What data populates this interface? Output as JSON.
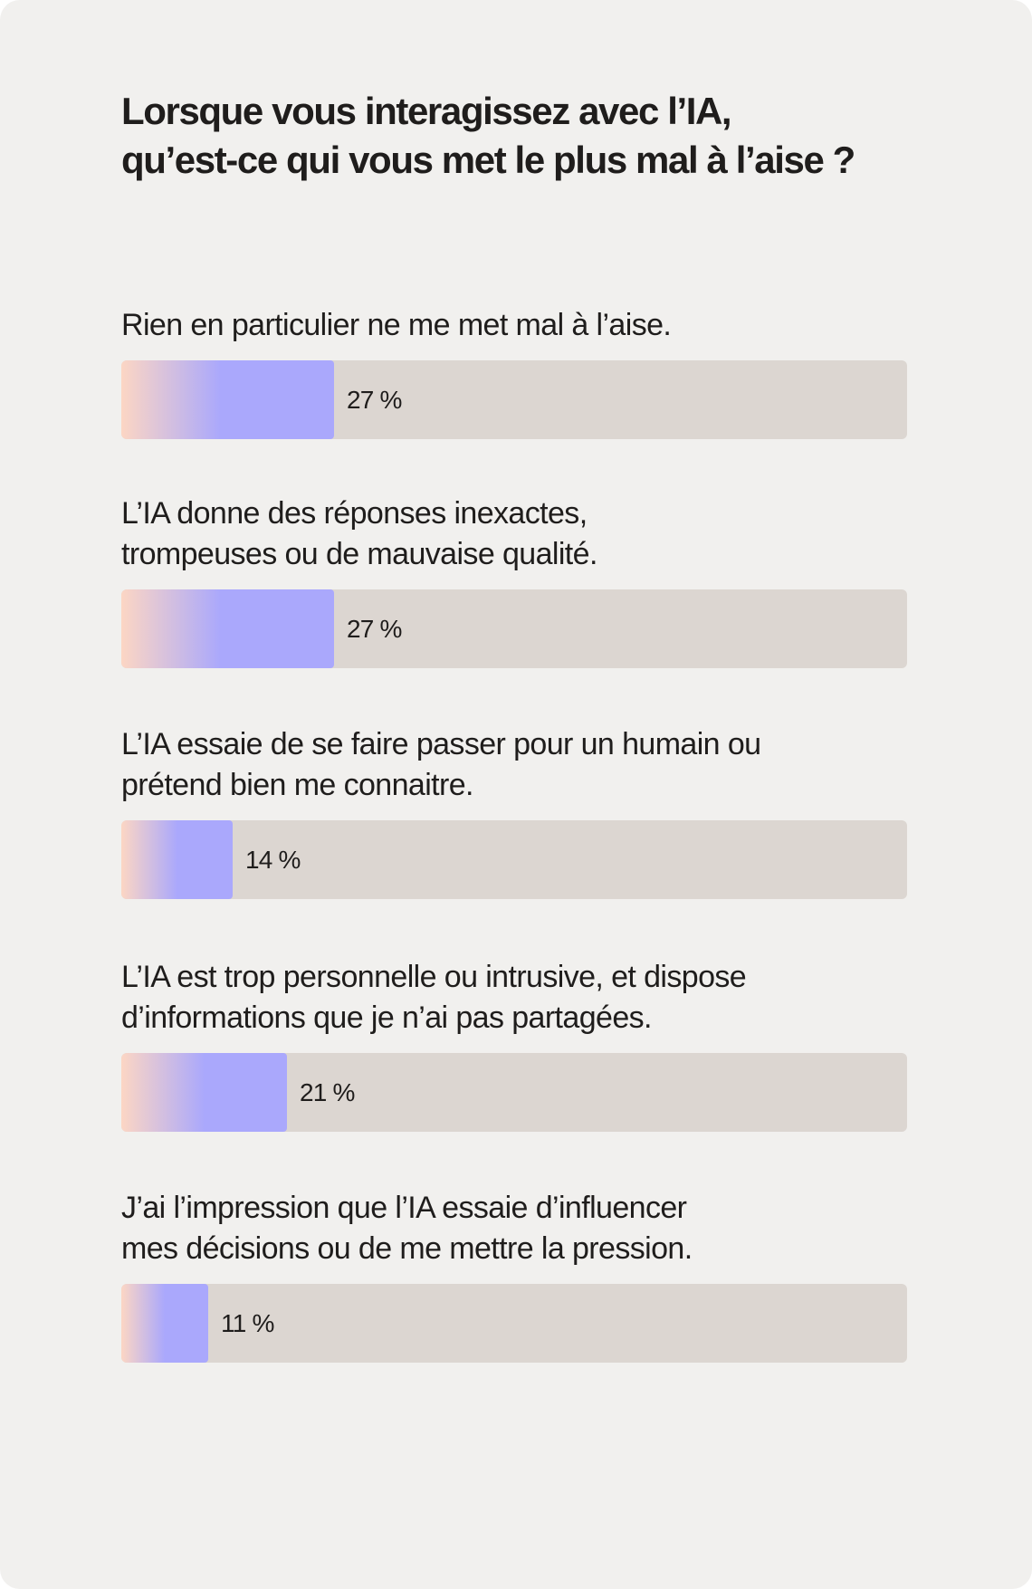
{
  "title_lines": [
    "Lorsque vous interagissez avec l’IA,",
    "qu’est-ce qui vous met le plus mal à l’aise ?"
  ],
  "colors": {
    "card_background": "#f1f0ee",
    "bar_track": "#dcd6d1",
    "bar_fill_start": "#fcd6c4",
    "bar_fill_end": "#aaa8fc",
    "text": "#1f1d1c"
  },
  "chart_data": {
    "type": "bar",
    "orientation": "horizontal",
    "title": "Lorsque vous interagissez avec l’IA, qu’est-ce qui vous met le plus mal à l’aise ?",
    "xlim": [
      0,
      100
    ],
    "grid": false,
    "unit": "%",
    "categories": [
      [
        "Rien en particulier ne me met mal à l’aise."
      ],
      [
        "L’IA donne des réponses inexactes,",
        "trompeuses ou de mauvaise qualité."
      ],
      [
        "L’IA essaie de se faire passer pour un humain ou",
        "prétend bien me connaitre."
      ],
      [
        "L’IA est trop personnelle ou intrusive, et dispose",
        "d’informations que je n’ai pas partagées."
      ],
      [
        "J’ai l’impression que l’IA essaie d’influencer",
        "mes décisions ou de me mettre la pression."
      ]
    ],
    "values": [
      27,
      27,
      14,
      21,
      11
    ],
    "value_labels": [
      "27 %",
      "27 %",
      "14 %",
      "21 %",
      "11 %"
    ]
  }
}
